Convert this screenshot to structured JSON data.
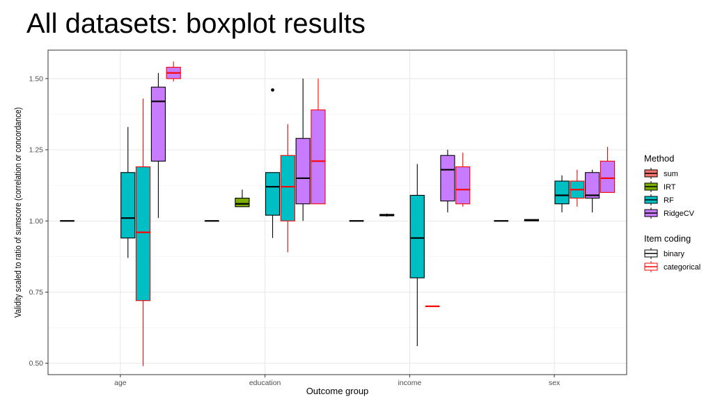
{
  "slide": {
    "title": "All datasets: boxplot results"
  },
  "chart_data": {
    "type": "boxplot",
    "title": "",
    "xlabel": "Outcome group",
    "ylabel": "Validity scaled to ratio of sumscore (correlation or concordance)",
    "ylim": [
      0.46,
      1.6
    ],
    "yticks": [
      0.5,
      0.75,
      1.0,
      1.25,
      1.5
    ],
    "ytick_labels": [
      "0.50",
      "0.75",
      "1.00",
      "1.25",
      "1.50"
    ],
    "grid": true,
    "legend_position": "right",
    "categories": [
      "age",
      "education",
      "income",
      "sex"
    ],
    "methods": [
      "sum",
      "IRT",
      "RF",
      "RidgeCV"
    ],
    "codings": [
      "binary",
      "categorical"
    ],
    "method_colors": {
      "sum": "#F8766D",
      "IRT": "#7CAE00",
      "RF": "#00BFC4",
      "RidgeCV": "#C77CFF"
    },
    "coding_colors": {
      "binary": "#000000",
      "categorical": "#FF0000"
    },
    "legend": {
      "method_title": "Method",
      "method_items": [
        "sum",
        "IRT",
        "RF",
        "RidgeCV"
      ],
      "coding_title": "Item coding",
      "coding_items": [
        "binary",
        "categorical"
      ]
    },
    "boxes": [
      {
        "category": "age",
        "method": "sum",
        "coding": "binary",
        "min": 1.0,
        "q1": 1.0,
        "median": 1.0,
        "q3": 1.0,
        "max": 1.0,
        "outliers": []
      },
      {
        "category": "age",
        "method": "RF",
        "coding": "binary",
        "min": 0.87,
        "q1": 0.94,
        "median": 1.01,
        "q3": 1.17,
        "max": 1.33,
        "outliers": []
      },
      {
        "category": "age",
        "method": "RF",
        "coding": "categorical",
        "min": 0.49,
        "q1": 0.72,
        "median": 0.96,
        "q3": 1.19,
        "max": 1.43,
        "outliers": []
      },
      {
        "category": "age",
        "method": "RidgeCV",
        "coding": "binary",
        "min": 1.01,
        "q1": 1.21,
        "median": 1.42,
        "q3": 1.47,
        "max": 1.52,
        "outliers": []
      },
      {
        "category": "age",
        "method": "RidgeCV",
        "coding": "categorical",
        "min": 1.49,
        "q1": 1.5,
        "median": 1.52,
        "q3": 1.54,
        "max": 1.56,
        "outliers": []
      },
      {
        "category": "education",
        "method": "sum",
        "coding": "binary",
        "min": 1.0,
        "q1": 1.0,
        "median": 1.0,
        "q3": 1.0,
        "max": 1.0,
        "outliers": []
      },
      {
        "category": "education",
        "method": "IRT",
        "coding": "binary",
        "min": 1.05,
        "q1": 1.05,
        "median": 1.06,
        "q3": 1.08,
        "max": 1.11,
        "outliers": []
      },
      {
        "category": "education",
        "method": "RF",
        "coding": "binary",
        "min": 0.94,
        "q1": 1.02,
        "median": 1.12,
        "q3": 1.17,
        "max": 1.17,
        "outliers": [
          1.46
        ]
      },
      {
        "category": "education",
        "method": "RF",
        "coding": "categorical",
        "min": 0.89,
        "q1": 1.0,
        "median": 1.12,
        "q3": 1.23,
        "max": 1.34,
        "outliers": []
      },
      {
        "category": "education",
        "method": "RidgeCV",
        "coding": "binary",
        "min": 1.0,
        "q1": 1.06,
        "median": 1.15,
        "q3": 1.29,
        "max": 1.5,
        "outliers": []
      },
      {
        "category": "education",
        "method": "RidgeCV",
        "coding": "categorical",
        "min": 1.06,
        "q1": 1.06,
        "median": 1.21,
        "q3": 1.39,
        "max": 1.5,
        "outliers": []
      },
      {
        "category": "income",
        "method": "sum",
        "coding": "binary",
        "min": 1.0,
        "q1": 1.0,
        "median": 1.0,
        "q3": 1.0,
        "max": 1.0,
        "outliers": []
      },
      {
        "category": "income",
        "method": "IRT",
        "coding": "binary",
        "min": 1.015,
        "q1": 1.018,
        "median": 1.02,
        "q3": 1.023,
        "max": 1.026,
        "outliers": []
      },
      {
        "category": "income",
        "method": "RF",
        "coding": "binary",
        "min": 0.56,
        "q1": 0.8,
        "median": 0.94,
        "q3": 1.09,
        "max": 1.2,
        "outliers": []
      },
      {
        "category": "income",
        "method": "RF",
        "coding": "categorical",
        "min": 0.7,
        "q1": 0.7,
        "median": 0.7,
        "q3": 0.7,
        "max": 0.7,
        "outliers": []
      },
      {
        "category": "income",
        "method": "RidgeCV",
        "coding": "binary",
        "min": 1.03,
        "q1": 1.07,
        "median": 1.18,
        "q3": 1.23,
        "max": 1.25,
        "outliers": []
      },
      {
        "category": "income",
        "method": "RidgeCV",
        "coding": "categorical",
        "min": 1.05,
        "q1": 1.06,
        "median": 1.11,
        "q3": 1.19,
        "max": 1.24,
        "outliers": []
      },
      {
        "category": "sex",
        "method": "sum",
        "coding": "binary",
        "min": 1.0,
        "q1": 1.0,
        "median": 1.0,
        "q3": 1.0,
        "max": 1.0,
        "outliers": []
      },
      {
        "category": "sex",
        "method": "IRT",
        "coding": "binary",
        "min": 1.0,
        "q1": 1.0,
        "median": 1.003,
        "q3": 1.005,
        "max": 1.005,
        "outliers": []
      },
      {
        "category": "sex",
        "method": "RF",
        "coding": "binary",
        "min": 1.03,
        "q1": 1.06,
        "median": 1.09,
        "q3": 1.14,
        "max": 1.16,
        "outliers": []
      },
      {
        "category": "sex",
        "method": "RF",
        "coding": "categorical",
        "min": 1.05,
        "q1": 1.08,
        "median": 1.11,
        "q3": 1.14,
        "max": 1.18,
        "outliers": []
      },
      {
        "category": "sex",
        "method": "RidgeCV",
        "coding": "binary",
        "min": 1.03,
        "q1": 1.08,
        "median": 1.09,
        "q3": 1.17,
        "max": 1.18,
        "outliers": []
      },
      {
        "category": "sex",
        "method": "RidgeCV",
        "coding": "categorical",
        "min": 1.1,
        "q1": 1.1,
        "median": 1.15,
        "q3": 1.21,
        "max": 1.26,
        "outliers": []
      }
    ]
  }
}
